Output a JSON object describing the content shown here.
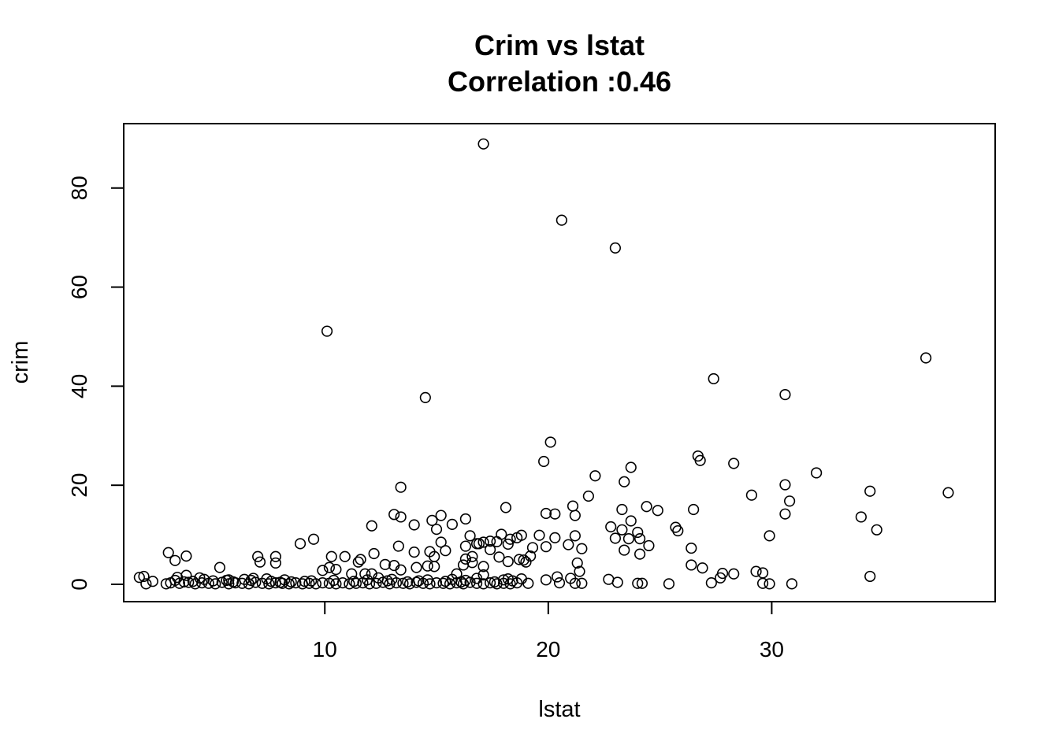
{
  "chart_data": {
    "type": "scatter",
    "title": "Crim vs lstat",
    "subtitle": "Correlation :0.46",
    "xlabel": "lstat",
    "ylabel": "crim",
    "xlim": [
      1.0,
      40.0
    ],
    "ylim": [
      -3.5,
      93.0
    ],
    "xticks": [
      10,
      20,
      30
    ],
    "yticks": [
      0,
      20,
      40,
      60,
      80
    ],
    "grid": false,
    "legend": "none",
    "marker": "open-circle",
    "marker_color": "#000000",
    "points": [
      [
        17.1,
        88.9
      ],
      [
        20.6,
        73.5
      ],
      [
        23.0,
        67.9
      ],
      [
        10.1,
        51.1
      ],
      [
        36.9,
        45.7
      ],
      [
        27.4,
        41.5
      ],
      [
        30.6,
        38.3
      ],
      [
        14.5,
        37.7
      ],
      [
        20.1,
        28.7
      ],
      [
        26.7,
        25.9
      ],
      [
        26.8,
        25.0
      ],
      [
        28.3,
        24.4
      ],
      [
        19.8,
        24.8
      ],
      [
        23.7,
        23.6
      ],
      [
        32.0,
        22.5
      ],
      [
        22.1,
        21.9
      ],
      [
        23.4,
        20.7
      ],
      [
        30.6,
        20.1
      ],
      [
        13.4,
        19.6
      ],
      [
        34.4,
        18.8
      ],
      [
        37.9,
        18.5
      ],
      [
        29.1,
        18.0
      ],
      [
        21.8,
        17.8
      ],
      [
        30.8,
        16.8
      ],
      [
        24.4,
        15.7
      ],
      [
        21.1,
        15.8
      ],
      [
        18.1,
        15.5
      ],
      [
        26.5,
        15.1
      ],
      [
        23.3,
        15.1
      ],
      [
        24.9,
        14.9
      ],
      [
        30.6,
        14.2
      ],
      [
        19.9,
        14.3
      ],
      [
        20.3,
        14.2
      ],
      [
        13.1,
        14.1
      ],
      [
        15.2,
        13.9
      ],
      [
        21.2,
        13.9
      ],
      [
        13.4,
        13.6
      ],
      [
        34.0,
        13.6
      ],
      [
        16.3,
        13.2
      ],
      [
        23.7,
        12.8
      ],
      [
        14.8,
        12.9
      ],
      [
        15.7,
        12.1
      ],
      [
        14.0,
        12.0
      ],
      [
        12.1,
        11.8
      ],
      [
        22.8,
        11.6
      ],
      [
        25.7,
        11.5
      ],
      [
        25.8,
        10.8
      ],
      [
        34.7,
        11.0
      ],
      [
        15.0,
        11.1
      ],
      [
        23.3,
        11.0
      ],
      [
        16.5,
        9.8
      ],
      [
        17.9,
        10.1
      ],
      [
        18.8,
        9.9
      ],
      [
        24.0,
        10.5
      ],
      [
        19.6,
        9.9
      ],
      [
        29.9,
        9.8
      ],
      [
        21.2,
        9.8
      ],
      [
        20.3,
        9.4
      ],
      [
        18.3,
        9.1
      ],
      [
        23.0,
        9.3
      ],
      [
        23.6,
        9.2
      ],
      [
        24.1,
        9.2
      ],
      [
        18.6,
        9.4
      ],
      [
        9.5,
        9.1
      ],
      [
        17.4,
        8.7
      ],
      [
        17.1,
        8.5
      ],
      [
        16.8,
        8.2
      ],
      [
        17.7,
        8.6
      ],
      [
        15.2,
        8.5
      ],
      [
        18.2,
        8.1
      ],
      [
        16.9,
        8.2
      ],
      [
        20.9,
        8.0
      ],
      [
        24.5,
        7.8
      ],
      [
        8.9,
        8.2
      ],
      [
        13.3,
        7.7
      ],
      [
        16.3,
        7.7
      ],
      [
        19.3,
        7.4
      ],
      [
        19.9,
        7.6
      ],
      [
        26.4,
        7.3
      ],
      [
        21.5,
        7.2
      ],
      [
        17.4,
        7.0
      ],
      [
        23.4,
        6.9
      ],
      [
        15.4,
        6.8
      ],
      [
        14.7,
        6.6
      ],
      [
        14.0,
        6.5
      ],
      [
        24.1,
        6.1
      ],
      [
        12.2,
        6.2
      ],
      [
        3.0,
        6.4
      ],
      [
        3.8,
        5.7
      ],
      [
        7.0,
        5.6
      ],
      [
        7.8,
        5.6
      ],
      [
        10.3,
        5.6
      ],
      [
        10.9,
        5.6
      ],
      [
        14.9,
        5.6
      ],
      [
        16.6,
        5.6
      ],
      [
        17.8,
        5.5
      ],
      [
        19.2,
        5.7
      ],
      [
        11.6,
        5.0
      ],
      [
        16.3,
        5.1
      ],
      [
        18.7,
        5.0
      ],
      [
        18.9,
        4.9
      ],
      [
        3.3,
        4.8
      ],
      [
        7.1,
        4.5
      ],
      [
        7.8,
        4.3
      ],
      [
        11.5,
        4.5
      ],
      [
        16.6,
        4.4
      ],
      [
        18.2,
        4.6
      ],
      [
        19.0,
        4.5
      ],
      [
        21.3,
        4.3
      ],
      [
        16.2,
        3.9
      ],
      [
        12.7,
        4.0
      ],
      [
        13.1,
        3.8
      ],
      [
        14.6,
        3.7
      ],
      [
        14.9,
        3.6
      ],
      [
        10.2,
        3.4
      ],
      [
        17.1,
        3.6
      ],
      [
        14.1,
        3.4
      ],
      [
        26.4,
        3.9
      ],
      [
        26.9,
        3.3
      ],
      [
        5.3,
        3.4
      ],
      [
        10.5,
        3.0
      ],
      [
        9.9,
        2.8
      ],
      [
        13.4,
        2.9
      ],
      [
        21.4,
        2.6
      ],
      [
        29.3,
        2.6
      ],
      [
        29.6,
        2.3
      ],
      [
        27.8,
        2.2
      ],
      [
        28.3,
        2.1
      ],
      [
        15.9,
        2.1
      ],
      [
        12.1,
        2.1
      ],
      [
        11.2,
        2.1
      ],
      [
        11.8,
        2.1
      ],
      [
        17.1,
        1.9
      ],
      [
        3.8,
        1.8
      ],
      [
        34.4,
        1.6
      ],
      [
        1.7,
        1.4
      ],
      [
        1.9,
        1.6
      ],
      [
        3.4,
        1.4
      ],
      [
        6.8,
        1.2
      ],
      [
        27.7,
        1.3
      ],
      [
        22.7,
        1.0
      ],
      [
        19.9,
        0.9
      ],
      [
        20.4,
        1.5
      ],
      [
        16.8,
        1.2
      ],
      [
        18.2,
        1.1
      ],
      [
        18.8,
        1.1
      ],
      [
        21.0,
        1.2
      ],
      [
        4.6,
        1.0
      ],
      [
        7.4,
        1.1
      ],
      [
        5.7,
        0.9
      ],
      [
        12.4,
        1.3
      ],
      [
        8.2,
        0.9
      ],
      [
        2.3,
        0.6
      ],
      [
        2.0,
        0.1
      ],
      [
        2.9,
        0.1
      ],
      [
        3.1,
        0.3
      ],
      [
        3.5,
        0.2
      ],
      [
        3.9,
        0.4
      ],
      [
        4.2,
        0.1
      ],
      [
        4.5,
        0.3
      ],
      [
        4.8,
        0.2
      ],
      [
        5.1,
        0.1
      ],
      [
        5.4,
        0.4
      ],
      [
        5.7,
        0.1
      ],
      [
        6.0,
        0.3
      ],
      [
        6.3,
        0.2
      ],
      [
        6.6,
        0.1
      ],
      [
        6.9,
        0.4
      ],
      [
        7.2,
        0.2
      ],
      [
        7.5,
        0.1
      ],
      [
        7.8,
        0.3
      ],
      [
        8.1,
        0.2
      ],
      [
        8.4,
        0.1
      ],
      [
        8.7,
        0.3
      ],
      [
        9.0,
        0.1
      ],
      [
        9.3,
        0.2
      ],
      [
        9.6,
        0.1
      ],
      [
        9.9,
        0.3
      ],
      [
        10.2,
        0.2
      ],
      [
        10.5,
        0.1
      ],
      [
        10.8,
        0.3
      ],
      [
        11.1,
        0.1
      ],
      [
        11.4,
        0.2
      ],
      [
        11.7,
        0.3
      ],
      [
        12.0,
        0.1
      ],
      [
        12.3,
        0.2
      ],
      [
        12.6,
        0.4
      ],
      [
        12.9,
        0.1
      ],
      [
        13.2,
        0.3
      ],
      [
        13.5,
        0.2
      ],
      [
        13.8,
        0.1
      ],
      [
        14.1,
        0.4
      ],
      [
        14.4,
        0.2
      ],
      [
        14.7,
        0.1
      ],
      [
        15.0,
        0.3
      ],
      [
        15.3,
        0.2
      ],
      [
        15.6,
        0.1
      ],
      [
        15.9,
        0.3
      ],
      [
        16.2,
        0.1
      ],
      [
        16.5,
        0.4
      ],
      [
        16.8,
        0.2
      ],
      [
        17.1,
        0.1
      ],
      [
        17.4,
        0.3
      ],
      [
        17.7,
        0.1
      ],
      [
        18.0,
        0.2
      ],
      [
        18.3,
        0.1
      ],
      [
        18.6,
        0.3
      ],
      [
        19.1,
        0.2
      ],
      [
        20.5,
        0.3
      ],
      [
        21.2,
        0.2
      ],
      [
        21.5,
        0.2
      ],
      [
        23.1,
        0.4
      ],
      [
        24.0,
        0.2
      ],
      [
        24.2,
        0.2
      ],
      [
        25.4,
        0.1
      ],
      [
        27.3,
        0.3
      ],
      [
        29.6,
        0.2
      ],
      [
        29.9,
        0.1
      ],
      [
        30.9,
        0.1
      ],
      [
        3.3,
        0.8
      ],
      [
        4.1,
        0.6
      ],
      [
        5.0,
        0.7
      ],
      [
        5.9,
        0.5
      ],
      [
        6.7,
        0.8
      ],
      [
        7.6,
        0.6
      ],
      [
        8.5,
        0.5
      ],
      [
        9.4,
        0.7
      ],
      [
        10.4,
        0.8
      ],
      [
        11.3,
        0.6
      ],
      [
        12.8,
        0.7
      ],
      [
        13.7,
        0.5
      ],
      [
        14.6,
        0.9
      ],
      [
        15.4,
        0.6
      ],
      [
        16.3,
        0.8
      ],
      [
        17.6,
        0.5
      ],
      [
        18.4,
        0.7
      ],
      [
        4.4,
        1.3
      ],
      [
        5.6,
        0.8
      ],
      [
        6.4,
        1.0
      ],
      [
        9.1,
        0.6
      ],
      [
        11.9,
        0.9
      ],
      [
        13.0,
        1.0
      ],
      [
        14.2,
        0.7
      ],
      [
        15.7,
        1.0
      ],
      [
        16.1,
        0.5
      ],
      [
        18.0,
        0.9
      ],
      [
        3.7,
        0.5
      ],
      [
        8.0,
        0.4
      ]
    ]
  }
}
